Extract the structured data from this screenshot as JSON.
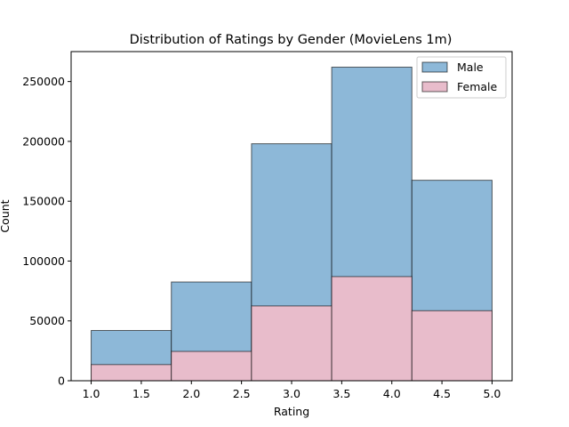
{
  "chart_data": {
    "type": "bar",
    "title": "Distribution of Ratings by Gender (MovieLens 1m)",
    "xlabel": "Rating",
    "ylabel": "Count",
    "xlim": [
      0.8,
      5.2
    ],
    "ylim": [
      0,
      275000
    ],
    "x_ticks": [
      "1.0",
      "1.5",
      "2.0",
      "2.5",
      "3.0",
      "3.5",
      "4.0",
      "4.5",
      "5.0"
    ],
    "y_ticks": [
      "0",
      "50000",
      "100000",
      "150000",
      "200000",
      "250000"
    ],
    "bin_edges": [
      1.0,
      1.8,
      2.6,
      3.4,
      4.2,
      5.0
    ],
    "legend_position": "top-right",
    "grid": false,
    "series": [
      {
        "name": "Male",
        "color": "#8db8d8",
        "values": [
          42000,
          82500,
          198000,
          262000,
          167500
        ]
      },
      {
        "name": "Female",
        "color": "#e8bccb",
        "values": [
          13500,
          24500,
          62500,
          87000,
          58500
        ]
      }
    ]
  }
}
